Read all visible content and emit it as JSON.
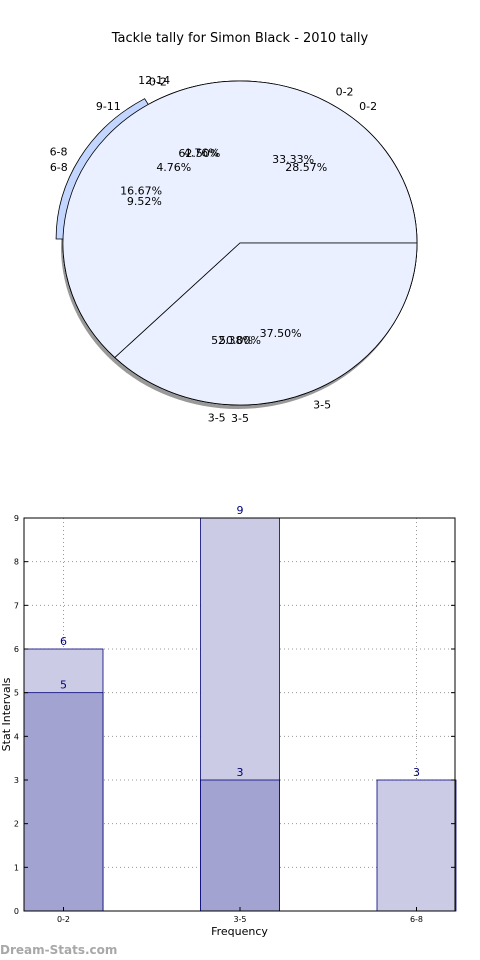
{
  "title": "Tackle tally for Simon Black - 2010 tally",
  "watermark": "Dream-Stats.com",
  "chart_data": [
    {
      "type": "pie",
      "title": "Tackle tally for Simon Black - 2010 tally",
      "rings": [
        {
          "slices": [
            {
              "label": "0-2",
              "value": 28.57,
              "pct_label": "28.57%",
              "color": "#ffffff",
              "exploded": false
            },
            {
              "label": "12-14",
              "value": 4.76,
              "pct_label": "4.76%",
              "color": "#ffffff",
              "exploded": false
            },
            {
              "label": "9-11",
              "value": 4.76,
              "pct_label": "4.76%",
              "color": "#ffffff",
              "exploded": false
            },
            {
              "label": "6-8",
              "value": 9.52,
              "pct_label": "9.52%",
              "color": "#ffffff",
              "exploded": false
            },
            {
              "label": "3-5",
              "value": 52.38,
              "pct_label": "52.38%",
              "color": "#ffffff",
              "exploded": false
            }
          ]
        },
        {
          "slices": [
            {
              "label": "0-2",
              "value": 33.33,
              "pct_label": "33.33%",
              "color": "#ffffff",
              "exploded": false
            },
            {
              "label": "6-8",
              "value": 16.67,
              "pct_label": "16.67%",
              "color": "#c3d6ff",
              "exploded": true
            },
            {
              "label": "3-5",
              "value": 50.0,
              "pct_label": "50.00%",
              "color": "#eaf0ff",
              "exploded": false
            }
          ]
        },
        {
          "slices": [
            {
              "label": "0-2",
              "value": 62.5,
              "pct_label": "62.50%",
              "color": "#eaf0ff",
              "exploded": false
            },
            {
              "label": "3-5",
              "value": 37.5,
              "pct_label": "37.50%",
              "color": "#eaf0ff",
              "exploded": false
            }
          ]
        }
      ]
    },
    {
      "type": "bar",
      "categories": [
        "0-2",
        "3-5",
        "6-8"
      ],
      "series": [
        {
          "values": [
            6,
            9,
            3
          ],
          "color": "#cbcbe5"
        },
        {
          "values": [
            5,
            3,
            null
          ],
          "color": "#a3a3d1"
        }
      ],
      "xlabel": "Frequency",
      "ylabel": "Stat Intervals",
      "ylim": [
        0,
        9
      ],
      "yticks": [
        0,
        1,
        2,
        3,
        4,
        5,
        6,
        7,
        8,
        9
      ],
      "grid": true
    }
  ]
}
